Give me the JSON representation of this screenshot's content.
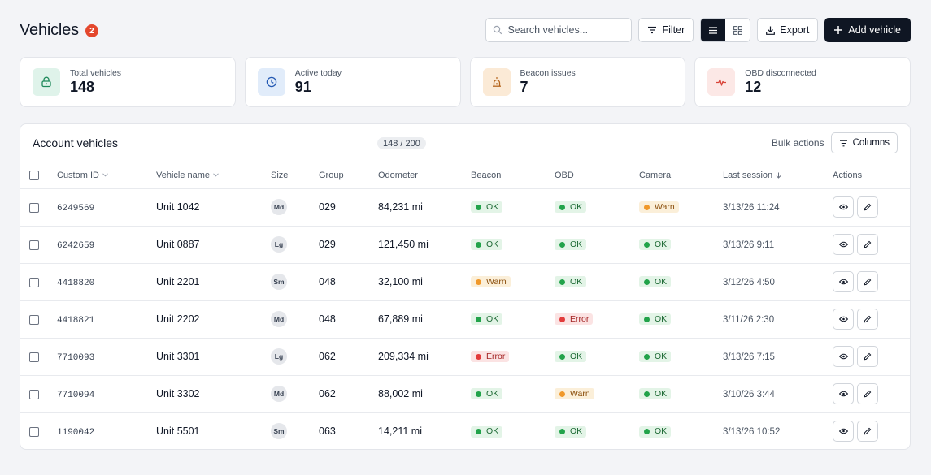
{
  "header": {
    "title": "Vehicles",
    "badge": "2",
    "search_placeholder": "Search vehicles...",
    "filter_label": "Filter",
    "export_label": "Export",
    "add_label": "Add vehicle",
    "view_mode": "list"
  },
  "stats": [
    {
      "label": "Total vehicles",
      "value": "148",
      "icon": "car-lock-icon",
      "bg": "#dff3ea",
      "fg": "#1f8a5b"
    },
    {
      "label": "Active today",
      "value": "91",
      "icon": "clock-icon",
      "bg": "#e1ecfa",
      "fg": "#2459b3"
    },
    {
      "label": "Beacon issues",
      "value": "7",
      "icon": "beacon-icon",
      "bg": "#fbead6",
      "fg": "#b5651d"
    },
    {
      "label": "OBD disconnected",
      "value": "12",
      "icon": "pulse-icon",
      "bg": "#fce8e6",
      "fg": "#d9453a"
    }
  ],
  "table": {
    "title": "Account vehicles",
    "count": "148 / 200",
    "bulk_label": "Bulk actions",
    "columns_label": "Columns",
    "headers": {
      "custom_id": "Custom ID",
      "vehicle_name": "Vehicle name",
      "size": "Size",
      "group": "Group",
      "odometer": "Odometer",
      "beacon": "Beacon",
      "obd": "OBD",
      "camera": "Camera",
      "last_session": "Last session",
      "actions": "Actions"
    },
    "rows": [
      {
        "id": "6249569",
        "name": "Unit 1042",
        "size": "Md",
        "group": "029",
        "odometer": "84,231 mi",
        "beacon": "OK",
        "obd": "OK",
        "camera": "Warn",
        "last": "3/13/26 11:24"
      },
      {
        "id": "6242659",
        "name": "Unit 0887",
        "size": "Lg",
        "group": "029",
        "odometer": "121,450 mi",
        "beacon": "OK",
        "obd": "OK",
        "camera": "OK",
        "last": "3/13/26 9:11"
      },
      {
        "id": "4418820",
        "name": "Unit 2201",
        "size": "Sm",
        "group": "048",
        "odometer": "32,100 mi",
        "beacon": "Warn",
        "obd": "OK",
        "camera": "OK",
        "last": "3/12/26 4:50"
      },
      {
        "id": "4418821",
        "name": "Unit 2202",
        "size": "Md",
        "group": "048",
        "odometer": "67,889 mi",
        "beacon": "OK",
        "obd": "Error",
        "camera": "OK",
        "last": "3/11/26 2:30"
      },
      {
        "id": "7710093",
        "name": "Unit 3301",
        "size": "Lg",
        "group": "062",
        "odometer": "209,334 mi",
        "beacon": "Error",
        "obd": "OK",
        "camera": "OK",
        "last": "3/13/26 7:15"
      },
      {
        "id": "7710094",
        "name": "Unit 3302",
        "size": "Md",
        "group": "062",
        "odometer": "88,002 mi",
        "beacon": "OK",
        "obd": "Warn",
        "camera": "OK",
        "last": "3/10/26 3:44"
      },
      {
        "id": "1190042",
        "name": "Unit 5501",
        "size": "Sm",
        "group": "063",
        "odometer": "14,211 mi",
        "beacon": "OK",
        "obd": "OK",
        "camera": "OK",
        "last": "3/13/26 10:52"
      }
    ]
  }
}
